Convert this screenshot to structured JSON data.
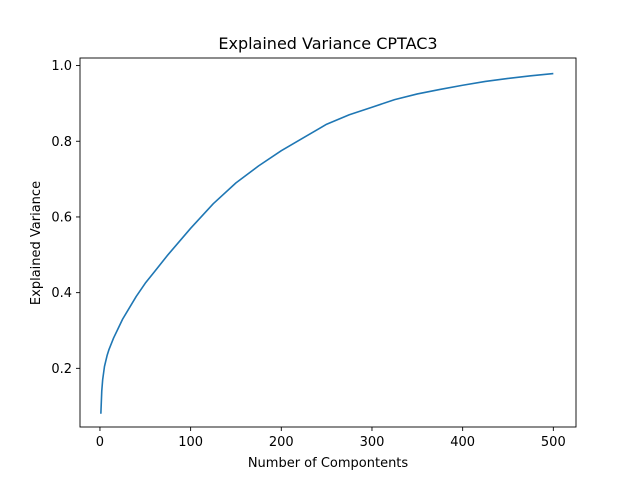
{
  "chart_data": {
    "type": "line",
    "title": "Explained Variance CPTAC3",
    "xlabel": "Number of Compontents",
    "ylabel": "Explained Variance",
    "xlim": [
      -22,
      525
    ],
    "ylim": [
      0.045,
      1.02
    ],
    "grid": false,
    "legend": "none",
    "x_ticks": [
      0,
      100,
      200,
      300,
      400,
      500
    ],
    "y_ticks": [
      0.2,
      0.4,
      0.6,
      0.8,
      1.0
    ],
    "x_tick_labels": [
      "0",
      "100",
      "200",
      "300",
      "400",
      "500"
    ],
    "y_tick_labels": [
      "0.2",
      "0.4",
      "0.6",
      "0.8",
      "1.0"
    ],
    "series": [
      {
        "color": "#1f77b4",
        "x": [
          1,
          2,
          3,
          5,
          8,
          10,
          15,
          20,
          25,
          30,
          40,
          50,
          60,
          75,
          100,
          125,
          150,
          175,
          200,
          225,
          250,
          275,
          300,
          325,
          350,
          375,
          400,
          425,
          450,
          475,
          500
        ],
        "y": [
          0.08,
          0.14,
          0.17,
          0.205,
          0.235,
          0.25,
          0.28,
          0.305,
          0.33,
          0.35,
          0.39,
          0.425,
          0.455,
          0.5,
          0.57,
          0.635,
          0.69,
          0.735,
          0.775,
          0.81,
          0.845,
          0.87,
          0.89,
          0.91,
          0.925,
          0.937,
          0.948,
          0.958,
          0.966,
          0.973,
          0.979
        ]
      }
    ]
  }
}
